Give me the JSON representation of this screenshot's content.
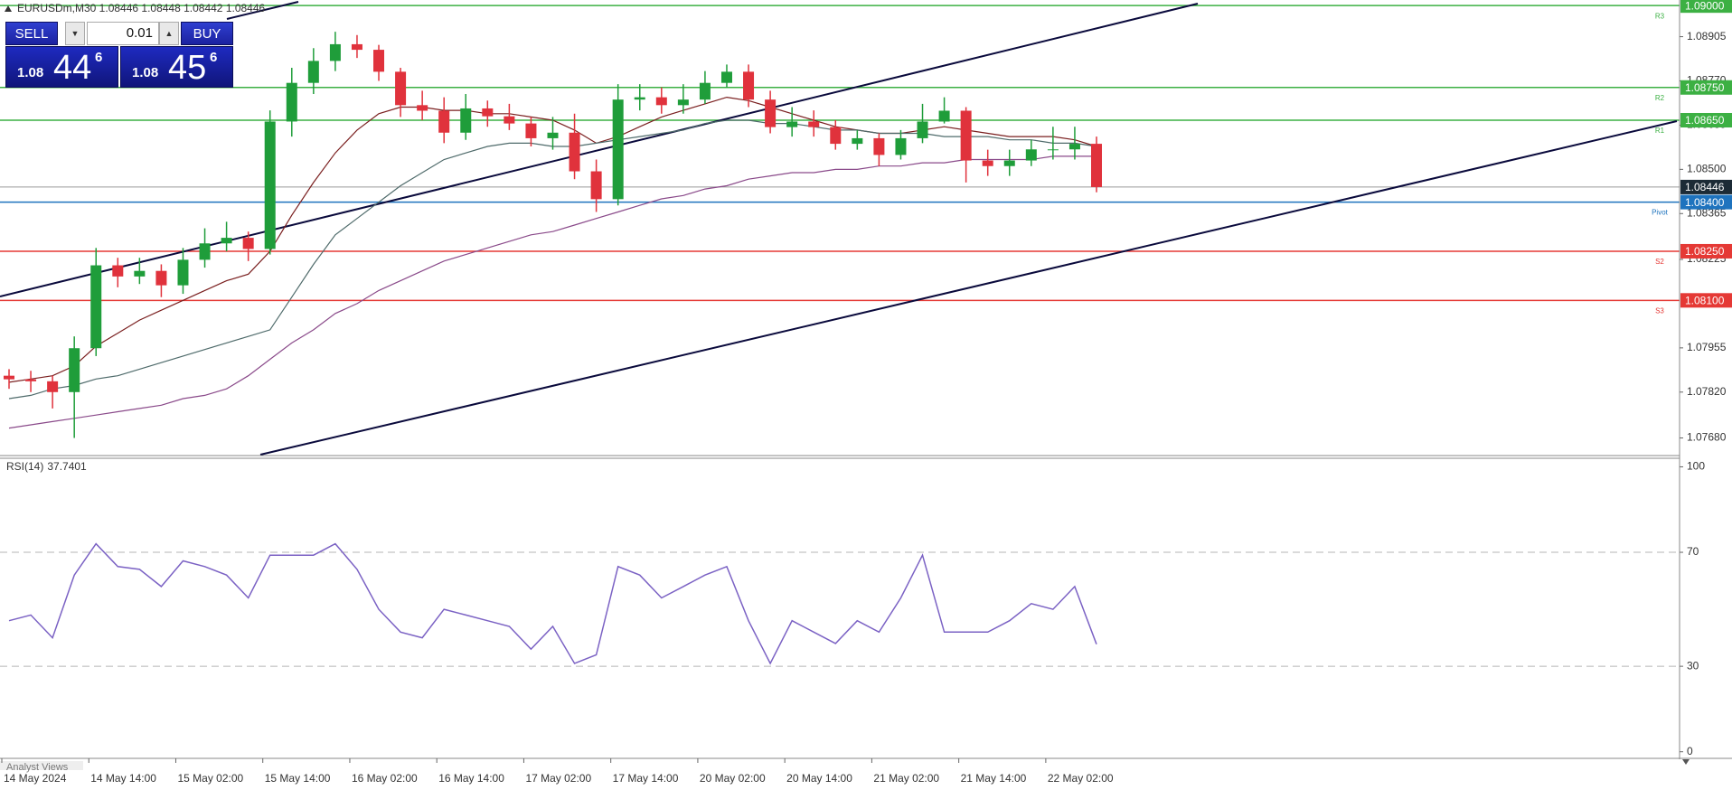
{
  "window": {
    "header": "EURUSDm,M30  1.08446 1.08448 1.08442 1.08446",
    "footer": "Analyst Views"
  },
  "trade_panel": {
    "sell_label": "SELL",
    "buy_label": "BUY",
    "volume": "0.01",
    "sell_price": {
      "big": "1.08",
      "main": "44",
      "small": "6"
    },
    "buy_price": {
      "big": "1.08",
      "main": "45",
      "small": "6"
    }
  },
  "chart_data": [
    {
      "type": "candlestick",
      "categories": [
        "14 May 2024",
        null,
        null,
        null,
        "14 May 14:00",
        null,
        null,
        null,
        "15 May 02:00",
        null,
        null,
        null,
        "15 May 14:00",
        null,
        null,
        null,
        "16 May 02:00",
        null,
        null,
        null,
        "16 May 14:00",
        null,
        null,
        null,
        "17 May 02:00",
        null,
        null,
        null,
        "17 May 14:00",
        null,
        null,
        null,
        "20 May 02:00",
        null,
        null,
        null,
        "20 May 14:00",
        null,
        null,
        null,
        "21 May 02:00",
        null,
        null,
        null,
        "21 May 14:00",
        null,
        null,
        null,
        "22 May 02:00",
        null,
        null
      ],
      "open": [
        1.0787,
        1.07859,
        1.07853,
        1.0782,
        1.07954,
        1.08207,
        1.08173,
        1.0819,
        1.08146,
        1.08224,
        1.08274,
        1.08291,
        1.08257,
        1.08646,
        1.08764,
        1.08831,
        1.08882,
        1.08865,
        1.08798,
        1.08696,
        1.08679,
        1.08612,
        1.08686,
        1.08662,
        1.0864,
        1.08595,
        1.08612,
        1.08494,
        1.08409,
        1.08713,
        1.0872,
        1.08696,
        1.08713,
        1.08764,
        1.08798,
        1.08713,
        1.08629,
        1.08646,
        1.08629,
        1.08578,
        1.08595,
        1.08544,
        1.08595,
        1.08646,
        1.08679,
        1.08527,
        1.0851,
        1.08527,
        1.08561,
        1.08561,
        1.08578
      ],
      "high": [
        1.0789,
        1.07885,
        1.0787,
        1.0799,
        1.0826,
        1.0823,
        1.0823,
        1.0821,
        1.0826,
        1.0832,
        1.0834,
        1.0831,
        1.0868,
        1.0881,
        1.0887,
        1.0892,
        1.0891,
        1.0888,
        1.0881,
        1.0874,
        1.0872,
        1.0873,
        1.0871,
        1.087,
        1.0866,
        1.0866,
        1.0867,
        1.0853,
        1.0876,
        1.0876,
        1.0875,
        1.0876,
        1.088,
        1.0882,
        1.0882,
        1.0874,
        1.0869,
        1.0868,
        1.0865,
        1.0862,
        1.0861,
        1.0862,
        1.087,
        1.0872,
        1.0869,
        1.0856,
        1.0856,
        1.0859,
        1.0863,
        1.0863,
        1.086
      ],
      "low": [
        1.0783,
        1.0782,
        1.0777,
        1.0768,
        1.0793,
        1.0814,
        1.0815,
        1.0811,
        1.0812,
        1.082,
        1.0825,
        1.0822,
        1.0824,
        1.086,
        1.0873,
        1.088,
        1.0884,
        1.0877,
        1.0866,
        1.0865,
        1.0858,
        1.0859,
        1.0863,
        1.0862,
        1.0857,
        1.0856,
        1.0847,
        1.0837,
        1.0839,
        1.0868,
        1.0867,
        1.0867,
        1.087,
        1.0875,
        1.0869,
        1.0861,
        1.086,
        1.086,
        1.0856,
        1.0856,
        1.0851,
        1.0853,
        1.0858,
        1.0864,
        1.0846,
        1.0848,
        1.0848,
        1.0851,
        1.0853,
        1.0853,
        1.0843
      ],
      "close": [
        1.07859,
        1.07853,
        1.0782,
        1.07954,
        1.08207,
        1.08173,
        1.0819,
        1.08146,
        1.08224,
        1.08274,
        1.08291,
        1.08257,
        1.08646,
        1.08764,
        1.08831,
        1.08882,
        1.08865,
        1.08798,
        1.08696,
        1.08679,
        1.08612,
        1.08686,
        1.08662,
        1.0864,
        1.08595,
        1.08612,
        1.08494,
        1.08409,
        1.08713,
        1.0872,
        1.08696,
        1.08713,
        1.08764,
        1.08798,
        1.08713,
        1.08629,
        1.08646,
        1.08629,
        1.08578,
        1.08595,
        1.08544,
        1.08595,
        1.08646,
        1.08679,
        1.08527,
        1.0851,
        1.08527,
        1.08561,
        1.08561,
        1.08578,
        1.08446
      ],
      "up_color": "#1f9d3a",
      "down_color": "#e0323c",
      "series": [
        {
          "color": "#7a1f1f",
          "values": [
            1.0785,
            1.0786,
            1.0787,
            1.079,
            1.0796,
            1.08,
            1.0804,
            1.0807,
            1.081,
            1.0813,
            1.0816,
            1.0818,
            1.0825,
            1.0836,
            1.0846,
            1.0855,
            1.0862,
            1.0867,
            1.0869,
            1.0869,
            1.0868,
            1.0868,
            1.0867,
            1.0867,
            1.0866,
            1.0865,
            1.0862,
            1.0858,
            1.086,
            1.0863,
            1.0866,
            1.0868,
            1.087,
            1.0872,
            1.0871,
            1.0869,
            1.0867,
            1.0865,
            1.0863,
            1.0862,
            1.0861,
            1.0861,
            1.0862,
            1.0863,
            1.0862,
            1.0861,
            1.086,
            1.086,
            1.086,
            1.0859,
            1.0857
          ]
        },
        {
          "color": "#4f6b6b",
          "values": [
            1.078,
            1.0781,
            1.0783,
            1.0784,
            1.0786,
            1.0787,
            1.0789,
            1.0791,
            1.0793,
            1.0795,
            1.0797,
            1.0799,
            1.0801,
            1.0811,
            1.0821,
            1.083,
            1.0835,
            1.084,
            1.0845,
            1.0849,
            1.0853,
            1.0855,
            1.0857,
            1.0858,
            1.0858,
            1.0857,
            1.0857,
            1.0858,
            1.0859,
            1.086,
            1.0861,
            1.0862,
            1.0864,
            1.0865,
            1.0865,
            1.0864,
            1.0864,
            1.0863,
            1.0862,
            1.0862,
            1.0861,
            1.0861,
            1.0861,
            1.086,
            1.086,
            1.086,
            1.0859,
            1.0859,
            1.0858,
            1.0858,
            1.0857
          ]
        },
        {
          "color": "#8a4a8a",
          "values": [
            1.0771,
            1.0772,
            1.0773,
            1.0774,
            1.0775,
            1.0776,
            1.0777,
            1.0778,
            1.078,
            1.0781,
            1.0783,
            1.0787,
            1.0792,
            1.0797,
            1.0801,
            1.0806,
            1.0809,
            1.0813,
            1.0816,
            1.0819,
            1.0822,
            1.0824,
            1.0826,
            1.0828,
            1.083,
            1.0831,
            1.0833,
            1.0835,
            1.0837,
            1.0839,
            1.0841,
            1.0842,
            1.0844,
            1.0845,
            1.0847,
            1.0848,
            1.0849,
            1.0849,
            1.085,
            1.085,
            1.0851,
            1.0851,
            1.0852,
            1.0852,
            1.0853,
            1.0853,
            1.0853,
            1.0853,
            1.0854,
            1.0854,
            1.0854
          ]
        }
      ],
      "levels": [
        {
          "name": "R3",
          "value": 1.09,
          "label": "1.09000",
          "color": "#3cb043"
        },
        {
          "name": "R2",
          "value": 1.0875,
          "label": "1.08750",
          "color": "#3cb043"
        },
        {
          "name": "R1",
          "value": 1.0865,
          "label": "1.08650",
          "color": "#3cb043"
        },
        {
          "name": "Pivot",
          "value": 1.084,
          "label": "1.08400",
          "color": "#1e73be"
        },
        {
          "name": "S2",
          "value": 1.0825,
          "label": "1.08250",
          "color": "#e53935"
        },
        {
          "name": "S3",
          "value": 1.081,
          "label": "1.08100",
          "color": "#e53935"
        }
      ],
      "last_price": {
        "value": 1.08446,
        "label": "1.08446",
        "color": "#1c2b36"
      },
      "ylim": [
        1.07629,
        1.09017
      ],
      "yticks": [
        {
          "value": 1.08905,
          "label": "1.08905"
        },
        {
          "value": 1.0877,
          "label": "1.08770"
        },
        {
          "value": 1.08635,
          "label": "1.08635"
        },
        {
          "value": 1.085,
          "label": "1.08500"
        },
        {
          "value": 1.08365,
          "label": "1.08365"
        },
        {
          "value": 1.08225,
          "label": "1.08225"
        },
        {
          "value": 1.07955,
          "label": "1.07955"
        },
        {
          "value": 1.0782,
          "label": "1.07820"
        },
        {
          "value": 1.0768,
          "label": "1.07680"
        }
      ]
    },
    {
      "type": "line",
      "title": "RSI(14)",
      "series": [
        {
          "color": "#7b62c4",
          "values": [
            46,
            48,
            40,
            62,
            73,
            65,
            64,
            58,
            67,
            65,
            62,
            54,
            69,
            69,
            69,
            73,
            64,
            50,
            42,
            40,
            50,
            48,
            46,
            44,
            36,
            44,
            31,
            34,
            65,
            62,
            54,
            58,
            62,
            65,
            46,
            31,
            46,
            42,
            38,
            46,
            42,
            54,
            69,
            42,
            42,
            42,
            46,
            52,
            50,
            58,
            37.7401
          ]
        }
      ],
      "ylim": [
        -2,
        103
      ],
      "yticks": [
        0,
        30,
        70,
        100
      ],
      "dashed_grid": [
        30,
        70
      ]
    }
  ]
}
